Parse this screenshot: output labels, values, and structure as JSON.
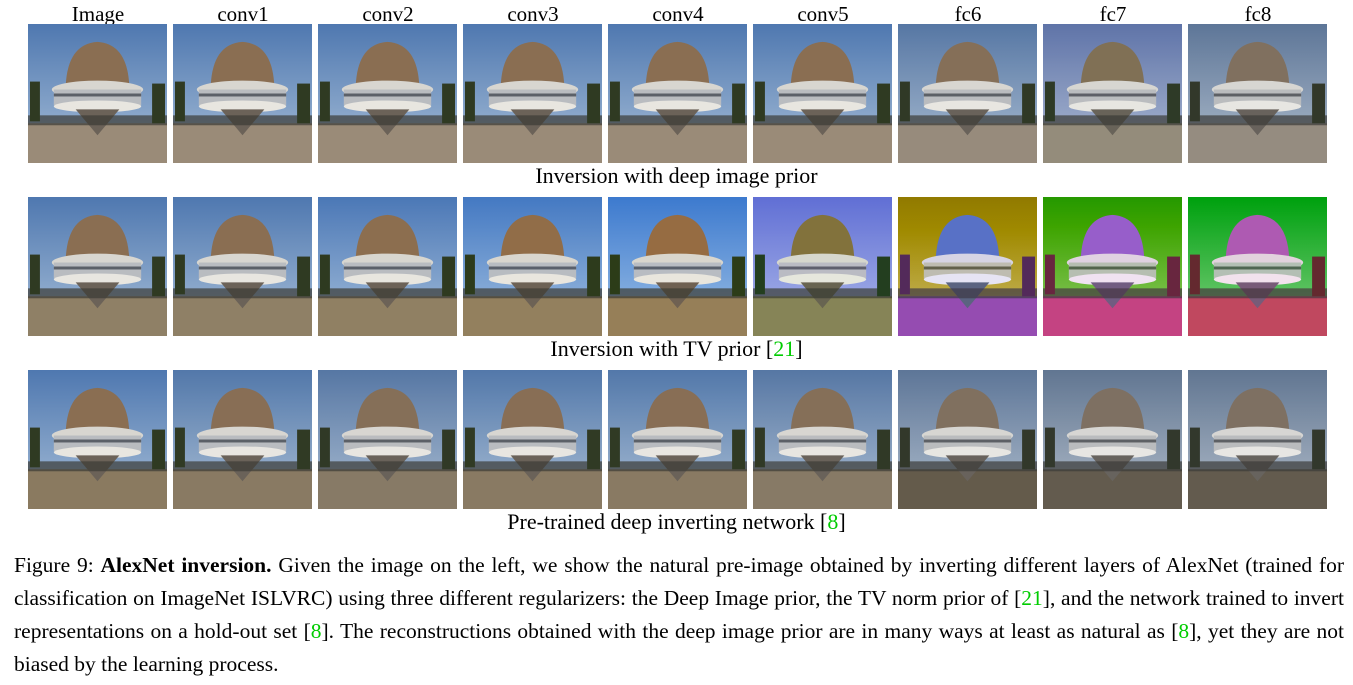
{
  "column_headers": [
    "Image",
    "conv1",
    "conv2",
    "conv3",
    "conv4",
    "conv5",
    "fc6",
    "fc7",
    "fc8"
  ],
  "rows": [
    {
      "caption": "Inversion with deep image prior",
      "cite": ""
    },
    {
      "caption": "Inversion with TV prior [",
      "cite": "21",
      "caption_end": "]"
    },
    {
      "caption": "Pre-trained deep inverting network [",
      "cite": "8",
      "caption_end": "]"
    }
  ],
  "figure_caption": {
    "label": "Figure 9:",
    "title": "AlexNet inversion.",
    "text_1": "Given the image on the left, we show the natural pre-image obtained by inverting different layers of AlexNet (trained for classification on ImageNet ISLVRC) using three different regularizers: the Deep Image prior, the TV norm prior of [",
    "cite_1": "21",
    "text_2": "], and the network trained to invert representations on a hold-out set [",
    "cite_2": "8",
    "text_3": "]. The reconstructions obtained with the deep image prior are in many ways at least as natural as [",
    "cite_3": "8",
    "text_4": "], yet they are not biased by the learning process."
  },
  "colors": {
    "citation": "#00cc00"
  }
}
